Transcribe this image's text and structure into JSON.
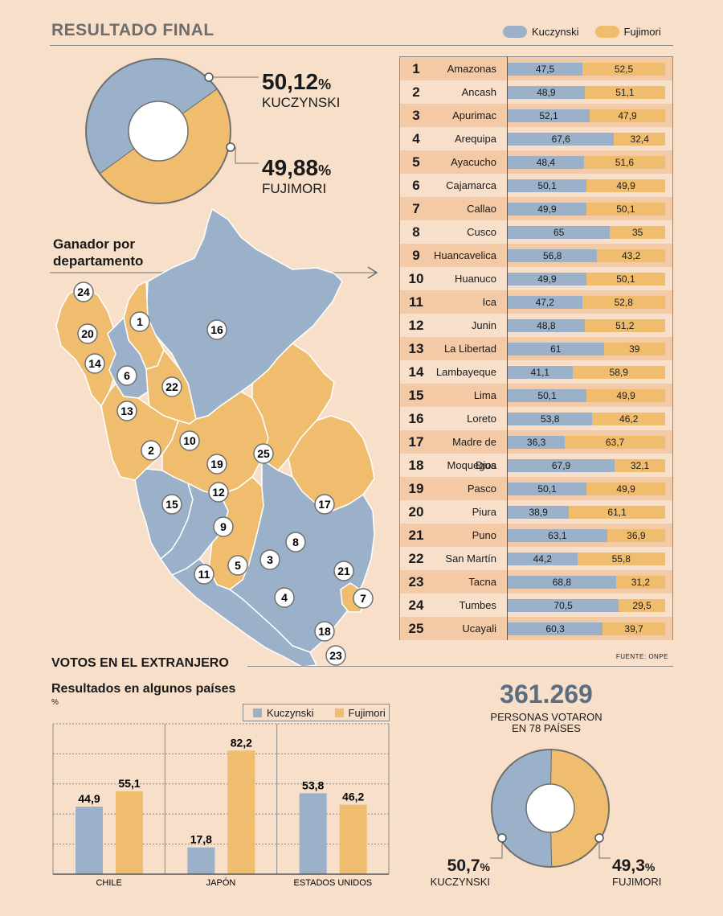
{
  "header": {
    "title": "RESULTADO FINAL"
  },
  "colors": {
    "kuczynski": "#9bb1c9",
    "fujimori": "#f0bd6e",
    "background": "#f8dfc9",
    "stripe": "#f4c9a6"
  },
  "legend": {
    "kuczynski": "Kuczynski",
    "fujimori": "Fujimori"
  },
  "summary": {
    "kuczynski_value": "50,12",
    "kuczynski_name": "KUCZYNSKI",
    "fujimori_value": "49,88",
    "fujimori_name": "FUJIMORI",
    "pct_symbol": "%"
  },
  "map": {
    "title_line1": "Ganador por",
    "title_line2": "departamento"
  },
  "chart_data": [
    {
      "type": "pie",
      "title": "RESULTADO FINAL",
      "categories": [
        "Kuczynski",
        "Fujimori"
      ],
      "values": [
        50.12,
        49.88
      ]
    },
    {
      "type": "bar",
      "title": "Ganador por departamento",
      "orientation": "horizontal-stacked",
      "numbers": [
        "1",
        "2",
        "3",
        "4",
        "5",
        "6",
        "7",
        "8",
        "9",
        "10",
        "11",
        "12",
        "13",
        "14",
        "15",
        "16",
        "17",
        "18",
        "19",
        "20",
        "21",
        "22",
        "23",
        "24",
        "25"
      ],
      "categories": [
        "Amazonas",
        "Ancash",
        "Apurimac",
        "Arequipa",
        "Ayacucho",
        "Cajamarca",
        "Callao",
        "Cusco",
        "Huancavelica",
        "Huanuco",
        "Ica",
        "Junin",
        "La Libertad",
        "Lambayeque",
        "Lima",
        "Loreto",
        "Madre de Dios",
        "Moquegua",
        "Pasco",
        "Piura",
        "Puno",
        "San Martín",
        "Tacna",
        "Tumbes",
        "Ucayali"
      ],
      "series": [
        {
          "name": "Kuczynski",
          "values": [
            47.5,
            48.9,
            52.1,
            67.6,
            48.4,
            50.1,
            49.9,
            65,
            56.8,
            49.9,
            47.2,
            48.8,
            61,
            41.1,
            50.1,
            53.8,
            36.3,
            67.9,
            50.1,
            38.9,
            63.1,
            44.2,
            68.8,
            70.5,
            60.3
          ],
          "labels": [
            "47,5",
            "48,9",
            "52,1",
            "67,6",
            "48,4",
            "50,1",
            "49,9",
            "65",
            "56,8",
            "49,9",
            "47,2",
            "48,8",
            "61",
            "41,1",
            "50,1",
            "53,8",
            "36,3",
            "67,9",
            "50,1",
            "38,9",
            "63,1",
            "44,2",
            "68,8",
            "70,5",
            "60,3"
          ]
        },
        {
          "name": "Fujimori",
          "values": [
            52.5,
            51.1,
            47.9,
            32.4,
            51.6,
            49.9,
            50.1,
            35,
            43.2,
            50.1,
            52.8,
            51.2,
            39,
            58.9,
            49.9,
            46.2,
            63.7,
            32.1,
            49.9,
            61.1,
            36.9,
            55.8,
            31.2,
            29.5,
            39.7
          ],
          "labels": [
            "52,5",
            "51,1",
            "47,9",
            "32,4",
            "51,6",
            "49,9",
            "50,1",
            "35",
            "43,2",
            "50,1",
            "52,8",
            "51,2",
            "39",
            "58,9",
            "49,9",
            "46,2",
            "63,7",
            "32,1",
            "49,9",
            "61,1",
            "36,9",
            "55,8",
            "31,2",
            "29,5",
            "39,7"
          ]
        }
      ],
      "xlim": [
        0,
        100
      ]
    },
    {
      "type": "bar",
      "title": "Resultados en algunos países",
      "ylabel": "%",
      "categories": [
        "CHILE",
        "JAPÓN",
        "ESTADOS UNIDOS"
      ],
      "series": [
        {
          "name": "Kuczynski",
          "values": [
            44.9,
            17.8,
            53.8
          ],
          "labels": [
            "44,9",
            "17,8",
            "53,8"
          ]
        },
        {
          "name": "Fujimori",
          "values": [
            55.1,
            82.2,
            46.2
          ],
          "labels": [
            "55,1",
            "82,2",
            "46,2"
          ]
        }
      ],
      "ylim": [
        0,
        100
      ],
      "grid": true
    },
    {
      "type": "pie",
      "title": "VOTOS EN EL EXTRANJERO",
      "categories": [
        "Kuczynski",
        "Fujimori"
      ],
      "values": [
        50.7,
        49.3
      ]
    }
  ],
  "source": "FUENTE: ONPE",
  "abroad": {
    "section_title": "VOTOS EN EL EXTRANJERO",
    "chart_title": "Resultados en algunos países",
    "unit": "%",
    "total": "361.269",
    "total_caption1": "PERSONAS VOTARON",
    "total_caption2": "EN 78 PAÍSES",
    "kuczynski_value": "50,7",
    "kuczynski_name": "KUCZYNSKI",
    "fujimori_value": "49,3",
    "fujimori_name": "FUJIMORI",
    "pct_symbol": "%"
  }
}
